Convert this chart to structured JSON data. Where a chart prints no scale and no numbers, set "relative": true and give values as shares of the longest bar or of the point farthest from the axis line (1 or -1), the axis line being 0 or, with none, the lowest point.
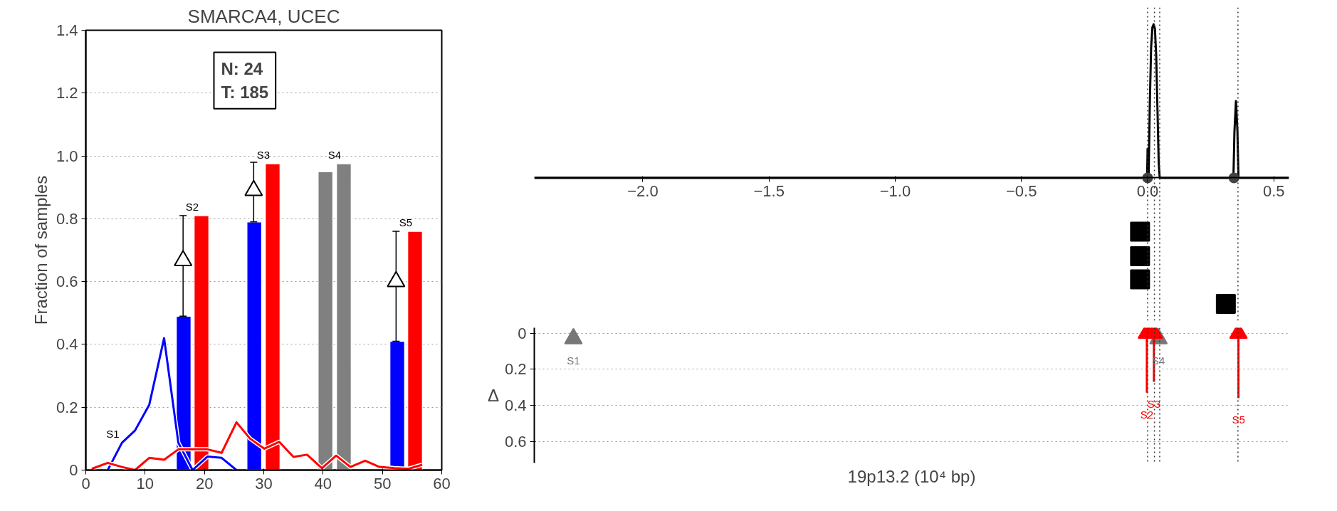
{
  "chart_data": [
    {
      "type": "bar",
      "title": "SMARCA4, UCEC",
      "ylabel": "Fraction of samples",
      "xlim": [
        0,
        60
      ],
      "xticks": [
        0,
        10,
        20,
        30,
        40,
        50,
        60
      ],
      "ylim": [
        0,
        1.4
      ],
      "yticks": [
        0.0,
        {
          "value": 0.2,
          "label": "0.2"
        },
        {
          "value": 0.4,
          "label": "0.4"
        },
        {
          "value": 0.6,
          "label": "0.6"
        },
        {
          "value": 0.8,
          "label": "0.8"
        },
        {
          "value": 1.0,
          "label": "1.0"
        },
        {
          "value": 1.2,
          "label": "1.2"
        },
        {
          "value": 1.4,
          "label": "1.4"
        }
      ],
      "grid": "y",
      "series": [
        {
          "type": "bar",
          "color": "#0000ff",
          "x": [
            16.5,
            28.4,
            52.5
          ],
          "values": [
            0.49,
            0.79,
            0.41
          ]
        },
        {
          "type": "bar",
          "color": "#ff0000",
          "x": [
            19.5,
            31.5,
            55.5
          ],
          "values": [
            0.81,
            0.975,
            0.76
          ]
        },
        {
          "type": "bar",
          "color": "#808080",
          "x": [
            40.4,
            43.5
          ],
          "values": [
            0.95,
            0.975
          ]
        },
        {
          "type": "line",
          "color": "#0000ff",
          "x": [
            3.7,
            6.1,
            8.3,
            10.7,
            13.2,
            15.6,
            18.0,
            20.5,
            22.9,
            25.4
          ],
          "values": [
            0.0,
            0.087,
            0.126,
            0.208,
            0.42,
            0.087,
            0.0,
            0.043,
            0.039,
            0.0
          ]
        },
        {
          "type": "line",
          "color": "#ff0000",
          "x": [
            1.0,
            3.7,
            6.1,
            8.3,
            10.7,
            13.2,
            15.6,
            18.0,
            20.5,
            22.9,
            25.4,
            27.7,
            30.1,
            32.6,
            35.0,
            37.3,
            39.8,
            42.2,
            44.6,
            47.1,
            49.5,
            52.0,
            54.4,
            56.7
          ],
          "values": [
            0.004,
            0.023,
            0.01,
            0.0,
            0.039,
            0.033,
            0.066,
            0.066,
            0.066,
            0.055,
            0.152,
            0.1,
            0.068,
            0.09,
            0.042,
            0.049,
            0.006,
            0.046,
            0.01,
            0.03,
            0.01,
            0.006,
            0.004,
            0.017
          ]
        },
        {
          "type": "scatter",
          "marker": "triangle",
          "color": "#000000",
          "x": [
            16.4,
            28.3,
            52.3
          ],
          "values": [
            0.667,
            0.89,
            0.6
          ],
          "errors": [
            [
              0.49,
              0.81
            ],
            [
              0.79,
              0.98
            ],
            [
              0.41,
              0.76
            ]
          ]
        }
      ],
      "annotations": [
        "N: 24\nT: 185",
        {
          "text": "S1",
          "x": 6.1,
          "y": 0.087
        },
        {
          "text": "S2",
          "x": 19.5,
          "y": 0.81
        },
        {
          "text": "S3",
          "x": 31.5,
          "y": 0.975
        },
        {
          "text": "S4",
          "x": 43.5,
          "y": 0.975
        },
        {
          "text": "S5",
          "x": 55.5,
          "y": 0.76
        }
      ]
    },
    {
      "type": "line",
      "relative": true,
      "xlim": [
        -2.43,
        0.56
      ],
      "xticks": [
        {
          "value": -2.0,
          "label": "−2.0"
        },
        {
          "value": -1.5,
          "label": "−1.5"
        },
        {
          "value": -1.0,
          "label": "−1.0"
        },
        {
          "value": -0.5,
          "label": "−0.5"
        },
        {
          "value": 0.0,
          "label": "0.0"
        },
        {
          "value": 0.5,
          "label": "0.5"
        }
      ],
      "tick_labels": "x",
      "series": [
        {
          "type": "line",
          "color": "#000000",
          "x": [
            -2.43,
            -0.002,
            0.0,
            0.002,
            0.004,
            0.009,
            0.014,
            0.019,
            0.024,
            0.029,
            0.034,
            0.039,
            0.044,
            0.048,
            0.34,
            0.344,
            0.35,
            0.356,
            0.36,
            0.56
          ],
          "values": [
            0,
            0,
            0.19,
            0,
            0,
            0.5,
            0.85,
            0.98,
            1.0,
            0.97,
            0.8,
            0.45,
            0.1,
            0,
            0,
            0.3,
            0.5,
            0.3,
            0,
            0
          ]
        },
        {
          "type": "scatter",
          "marker": "circle",
          "color": "#444444",
          "x": [
            0.0,
            0.342
          ],
          "values": [
            0,
            0
          ]
        },
        {
          "type": "scatter",
          "marker": "square",
          "color": "#000000",
          "x": [
            -0.03,
            -0.03,
            -0.03,
            0.31
          ],
          "values": [
            -0.35,
            -0.51,
            -0.66,
            -0.82
          ]
        }
      ],
      "ref_lines": [
        {
          "axis": "x",
          "value": 0.0,
          "line_style": "dotted"
        },
        {
          "axis": "x",
          "value": 0.027,
          "line_style": "dotted"
        },
        {
          "axis": "x",
          "value": 0.048,
          "line_style": "dotted"
        },
        {
          "axis": "x",
          "value": 0.358,
          "line_style": "dotted"
        }
      ]
    },
    {
      "type": "scatter",
      "xlabel": "19p13.2 (10⁴ bp)",
      "ylabel": "Δ",
      "xlim": [
        -2.43,
        0.56
      ],
      "ylim": [
        0.72,
        -0.03
      ],
      "yticks": [
        0.0,
        {
          "value": 0.2,
          "label": "0.2"
        },
        {
          "value": 0.4,
          "label": "0.4"
        },
        {
          "value": 0.6,
          "label": "0.6"
        }
      ],
      "tick_labels": "y",
      "grid": "y",
      "series": [
        {
          "type": "scatter",
          "marker": "triangle",
          "color": "#777777",
          "x": [
            -2.275,
            0.043
          ],
          "values": [
            0.03,
            0.03
          ]
        },
        {
          "type": "scatter",
          "marker": "triangle",
          "color": "#ff0000",
          "x": [
            -0.003,
            0.025,
            0.36
          ],
          "values": [
            0.0,
            0.0,
            0.0
          ],
          "errors": [
            [
              0.0,
              0.33
            ],
            [
              0.0,
              0.27
            ],
            [
              0.0,
              0.36
            ]
          ]
        }
      ],
      "ref_lines": [
        {
          "axis": "x",
          "value": 0.0,
          "line_style": "dotted"
        },
        {
          "axis": "x",
          "value": 0.027,
          "line_style": "dotted"
        },
        {
          "axis": "x",
          "value": 0.048,
          "line_style": "dotted"
        },
        {
          "axis": "x",
          "value": 0.358,
          "line_style": "dotted"
        }
      ],
      "annotations": [
        {
          "text": "S1",
          "x": -2.275,
          "y": 0.03
        },
        {
          "text": "S4",
          "x": 0.043,
          "y": 0.03
        },
        {
          "text": "S3",
          "x": 0.025,
          "y": 0.27
        },
        {
          "text": "S2",
          "x": -0.003,
          "y": 0.33
        },
        {
          "text": "S5",
          "x": 0.36,
          "y": 0.36
        }
      ]
    }
  ]
}
